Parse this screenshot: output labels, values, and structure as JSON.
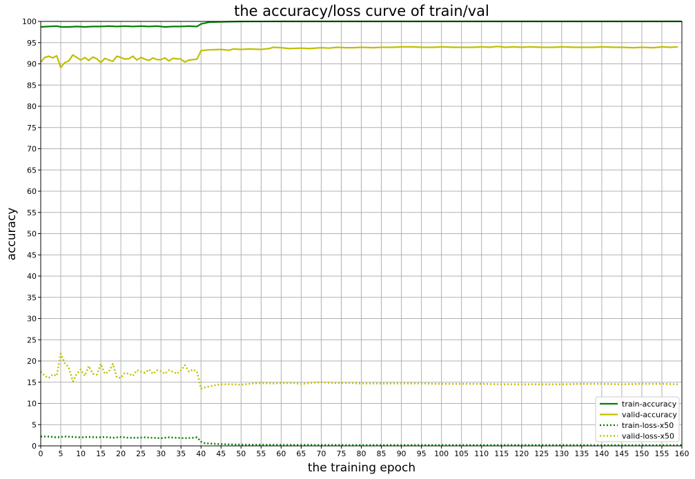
{
  "chart_data": {
    "type": "line",
    "title": "the accuracy/loss curve of train/val",
    "xlabel": "the training epoch",
    "ylabel": "accuracy",
    "xlim": [
      0,
      160
    ],
    "ylim": [
      0,
      100
    ],
    "xticks": [
      0,
      5,
      10,
      15,
      20,
      25,
      30,
      35,
      40,
      45,
      50,
      55,
      60,
      65,
      70,
      75,
      80,
      85,
      90,
      95,
      100,
      105,
      110,
      115,
      120,
      125,
      130,
      135,
      140,
      145,
      150,
      155,
      160
    ],
    "yticks": [
      0,
      5,
      10,
      15,
      20,
      25,
      30,
      35,
      40,
      45,
      50,
      55,
      60,
      65,
      70,
      75,
      80,
      85,
      90,
      95,
      100
    ],
    "grid": true,
    "legend_position": "lower-right",
    "series": [
      {
        "name": "train-accuracy",
        "color": "#008000",
        "style": "solid",
        "points": [
          [
            0,
            98.7
          ],
          [
            2,
            98.8
          ],
          [
            4,
            98.9
          ],
          [
            5,
            98.7
          ],
          [
            7,
            98.7
          ],
          [
            9,
            98.8
          ],
          [
            11,
            98.7
          ],
          [
            13,
            98.8
          ],
          [
            15,
            98.8
          ],
          [
            17,
            98.9
          ],
          [
            19,
            98.8
          ],
          [
            21,
            98.9
          ],
          [
            23,
            98.8
          ],
          [
            25,
            98.9
          ],
          [
            27,
            98.8
          ],
          [
            29,
            98.9
          ],
          [
            31,
            98.7
          ],
          [
            33,
            98.8
          ],
          [
            35,
            98.8
          ],
          [
            37,
            98.9
          ],
          [
            39,
            98.8
          ],
          [
            40,
            99.4
          ],
          [
            42,
            99.8
          ],
          [
            45,
            99.9
          ],
          [
            50,
            99.98
          ],
          [
            60,
            100
          ],
          [
            160,
            100
          ]
        ]
      },
      {
        "name": "valid-accuracy",
        "color": "#bfbf00",
        "style": "solid",
        "points": [
          [
            0,
            90.4
          ],
          [
            1,
            91.5
          ],
          [
            2,
            91.8
          ],
          [
            3,
            91.4
          ],
          [
            4,
            91.9
          ],
          [
            5,
            89.1
          ],
          [
            6,
            90.3
          ],
          [
            7,
            90.7
          ],
          [
            8,
            92.1
          ],
          [
            9,
            91.5
          ],
          [
            10,
            90.9
          ],
          [
            11,
            91.5
          ],
          [
            12,
            90.8
          ],
          [
            13,
            91.6
          ],
          [
            14,
            91.2
          ],
          [
            15,
            90.3
          ],
          [
            16,
            91.3
          ],
          [
            17,
            90.9
          ],
          [
            18,
            90.6
          ],
          [
            19,
            91.8
          ],
          [
            20,
            91.5
          ],
          [
            21,
            91.1
          ],
          [
            22,
            91.2
          ],
          [
            23,
            91.8
          ],
          [
            24,
            90.9
          ],
          [
            25,
            91.5
          ],
          [
            26,
            91.1
          ],
          [
            27,
            90.8
          ],
          [
            28,
            91.4
          ],
          [
            29,
            91.0
          ],
          [
            30,
            91.0
          ],
          [
            31,
            91.4
          ],
          [
            32,
            90.7
          ],
          [
            33,
            91.3
          ],
          [
            34,
            91.2
          ],
          [
            35,
            91.1
          ],
          [
            36,
            90.4
          ],
          [
            37,
            90.9
          ],
          [
            38,
            91.0
          ],
          [
            39,
            91.1
          ],
          [
            40,
            93.1
          ],
          [
            42,
            93.3
          ],
          [
            45,
            93.4
          ],
          [
            47,
            93.2
          ],
          [
            48,
            93.5
          ],
          [
            50,
            93.4
          ],
          [
            52,
            93.5
          ],
          [
            55,
            93.4
          ],
          [
            57,
            93.6
          ],
          [
            58,
            93.9
          ],
          [
            60,
            93.8
          ],
          [
            62,
            93.6
          ],
          [
            65,
            93.7
          ],
          [
            67,
            93.6
          ],
          [
            70,
            93.8
          ],
          [
            72,
            93.7
          ],
          [
            74,
            93.9
          ],
          [
            76,
            93.8
          ],
          [
            78,
            93.8
          ],
          [
            80,
            93.9
          ],
          [
            83,
            93.8
          ],
          [
            85,
            93.9
          ],
          [
            88,
            93.9
          ],
          [
            90,
            94.0
          ],
          [
            93,
            94.0
          ],
          [
            95,
            93.9
          ],
          [
            98,
            93.9
          ],
          [
            100,
            94.0
          ],
          [
            103,
            93.9
          ],
          [
            105,
            93.9
          ],
          [
            108,
            93.9
          ],
          [
            110,
            94.0
          ],
          [
            112,
            93.9
          ],
          [
            114,
            94.1
          ],
          [
            116,
            93.9
          ],
          [
            118,
            94.0
          ],
          [
            120,
            93.9
          ],
          [
            122,
            94.0
          ],
          [
            125,
            93.9
          ],
          [
            128,
            93.9
          ],
          [
            130,
            94.0
          ],
          [
            133,
            93.9
          ],
          [
            135,
            93.9
          ],
          [
            138,
            93.9
          ],
          [
            140,
            94.0
          ],
          [
            143,
            93.9
          ],
          [
            145,
            93.9
          ],
          [
            148,
            93.8
          ],
          [
            150,
            93.9
          ],
          [
            153,
            93.8
          ],
          [
            155,
            94.0
          ],
          [
            157,
            93.9
          ],
          [
            159,
            94.0
          ]
        ]
      },
      {
        "name": "train-loss-x50",
        "color": "#008000",
        "style": "dotted",
        "points": [
          [
            0,
            2.2
          ],
          [
            2,
            2.2
          ],
          [
            4,
            2.0
          ],
          [
            6,
            2.2
          ],
          [
            8,
            2.1
          ],
          [
            10,
            2.0
          ],
          [
            12,
            2.1
          ],
          [
            14,
            2.0
          ],
          [
            16,
            2.1
          ],
          [
            18,
            1.9
          ],
          [
            20,
            2.1
          ],
          [
            22,
            1.9
          ],
          [
            24,
            1.9
          ],
          [
            26,
            2.0
          ],
          [
            28,
            1.9
          ],
          [
            30,
            1.8
          ],
          [
            32,
            2.0
          ],
          [
            34,
            1.9
          ],
          [
            36,
            1.8
          ],
          [
            38,
            1.9
          ],
          [
            39,
            2.0
          ],
          [
            40,
            1.0
          ],
          [
            41,
            0.6
          ],
          [
            43,
            0.5
          ],
          [
            45,
            0.4
          ],
          [
            50,
            0.3
          ],
          [
            60,
            0.25
          ],
          [
            80,
            0.2
          ],
          [
            100,
            0.2
          ],
          [
            160,
            0.18
          ]
        ]
      },
      {
        "name": "valid-loss-x50",
        "color": "#bfbf00",
        "style": "dotted",
        "points": [
          [
            0,
            17.5
          ],
          [
            1,
            16.5
          ],
          [
            2,
            16.0
          ],
          [
            3,
            16.8
          ],
          [
            4,
            16.5
          ],
          [
            5,
            21.7
          ],
          [
            6,
            19.5
          ],
          [
            7,
            18.5
          ],
          [
            8,
            15.2
          ],
          [
            9,
            17.0
          ],
          [
            10,
            18.0
          ],
          [
            11,
            16.5
          ],
          [
            12,
            18.8
          ],
          [
            13,
            17.0
          ],
          [
            14,
            16.8
          ],
          [
            15,
            19.3
          ],
          [
            16,
            17.0
          ],
          [
            17,
            17.5
          ],
          [
            18,
            19.3
          ],
          [
            19,
            16.2
          ],
          [
            20,
            16.0
          ],
          [
            21,
            17.2
          ],
          [
            22,
            17.0
          ],
          [
            23,
            16.5
          ],
          [
            24,
            17.8
          ],
          [
            25,
            17.5
          ],
          [
            26,
            17.2
          ],
          [
            27,
            18.0
          ],
          [
            28,
            17.0
          ],
          [
            29,
            17.8
          ],
          [
            30,
            17.6
          ],
          [
            31,
            17.0
          ],
          [
            32,
            17.8
          ],
          [
            33,
            17.5
          ],
          [
            34,
            17.0
          ],
          [
            35,
            17.8
          ],
          [
            36,
            19.0
          ],
          [
            37,
            17.5
          ],
          [
            38,
            18.0
          ],
          [
            39,
            17.5
          ],
          [
            40,
            13.5
          ],
          [
            41,
            13.8
          ],
          [
            43,
            14.2
          ],
          [
            45,
            14.5
          ],
          [
            48,
            14.5
          ],
          [
            50,
            14.4
          ],
          [
            53,
            14.7
          ],
          [
            55,
            14.8
          ],
          [
            58,
            14.7
          ],
          [
            60,
            14.8
          ],
          [
            63,
            14.8
          ],
          [
            65,
            14.6
          ],
          [
            68,
            14.9
          ],
          [
            70,
            15.0
          ],
          [
            73,
            14.8
          ],
          [
            75,
            14.8
          ],
          [
            78,
            14.8
          ],
          [
            80,
            14.7
          ],
          [
            85,
            14.7
          ],
          [
            90,
            14.7
          ],
          [
            95,
            14.7
          ],
          [
            100,
            14.6
          ],
          [
            105,
            14.6
          ],
          [
            110,
            14.6
          ],
          [
            115,
            14.5
          ],
          [
            120,
            14.5
          ],
          [
            125,
            14.5
          ],
          [
            130,
            14.5
          ],
          [
            135,
            14.6
          ],
          [
            140,
            14.6
          ],
          [
            145,
            14.5
          ],
          [
            150,
            14.6
          ],
          [
            155,
            14.6
          ],
          [
            159,
            14.5
          ]
        ]
      }
    ]
  }
}
